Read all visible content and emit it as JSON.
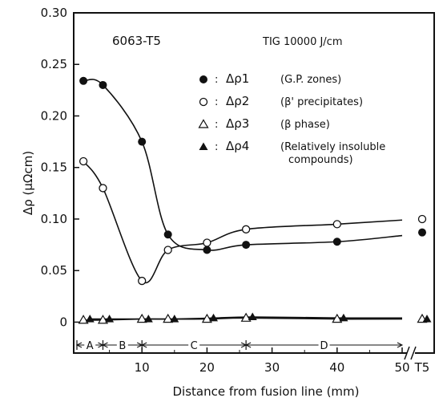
{
  "chart_data": {
    "type": "scatter",
    "title": "",
    "alloy": "6063-T5",
    "condition": "TIG 10000 J/cm",
    "xlabel": "Distance from fusion line (mm)",
    "ylabel": "Δρ (μΩcm)",
    "xlim": [
      0,
      50
    ],
    "ylim": [
      -0.03,
      0.3
    ],
    "x_ticks": [
      "10",
      "20",
      "30",
      "40",
      "50"
    ],
    "x_extra_tick": "T5",
    "y_ticks": [
      "0",
      "0.05",
      "0.10",
      "0.15",
      "0.20",
      "0.25",
      "0.30"
    ],
    "y_tick_values": [
      0,
      0.05,
      0.1,
      0.15,
      0.2,
      0.25,
      0.3
    ],
    "grid": false,
    "legend_position": "top-right",
    "series": [
      {
        "key": "p1",
        "name": "Δρ1",
        "note": "(G.P. zones)",
        "marker": "filled-circle",
        "x": [
          1,
          4,
          10,
          14,
          20,
          26,
          40
        ],
        "y": [
          0.234,
          0.23,
          0.175,
          0.085,
          0.07,
          0.075,
          0.078
        ],
        "t5": 0.087
      },
      {
        "key": "p2",
        "name": "Δρ2",
        "note": "(β' precipitates)",
        "marker": "open-circle",
        "x": [
          1,
          4,
          10,
          14,
          20,
          26,
          40
        ],
        "y": [
          0.156,
          0.13,
          0.04,
          0.07,
          0.077,
          0.09,
          0.095
        ],
        "t5": 0.1
      },
      {
        "key": "p3",
        "name": "Δρ3",
        "note": "(β phase)",
        "marker": "open-triangle",
        "x": [
          1,
          4,
          10,
          14,
          20,
          26,
          40
        ],
        "y": [
          0.002,
          0.002,
          0.003,
          0.003,
          0.003,
          0.004,
          0.003
        ],
        "t5": 0.003
      },
      {
        "key": "p4",
        "name": "Δρ4",
        "note": "(Relatively insoluble compounds)",
        "note_lines": [
          "(Relatively insoluble",
          "compounds)"
        ],
        "marker": "filled-triangle",
        "x": [
          2,
          5,
          11,
          15,
          21,
          27,
          41
        ],
        "y": [
          0.003,
          0.003,
          0.003,
          0.003,
          0.004,
          0.005,
          0.004
        ],
        "t5": 0.003
      }
    ],
    "zones": [
      {
        "label": "A",
        "from": 0,
        "to": 4
      },
      {
        "label": "B",
        "from": 4,
        "to": 10
      },
      {
        "label": "C",
        "from": 10,
        "to": 26
      },
      {
        "label": "D",
        "from": 26,
        "to": 50
      }
    ]
  }
}
